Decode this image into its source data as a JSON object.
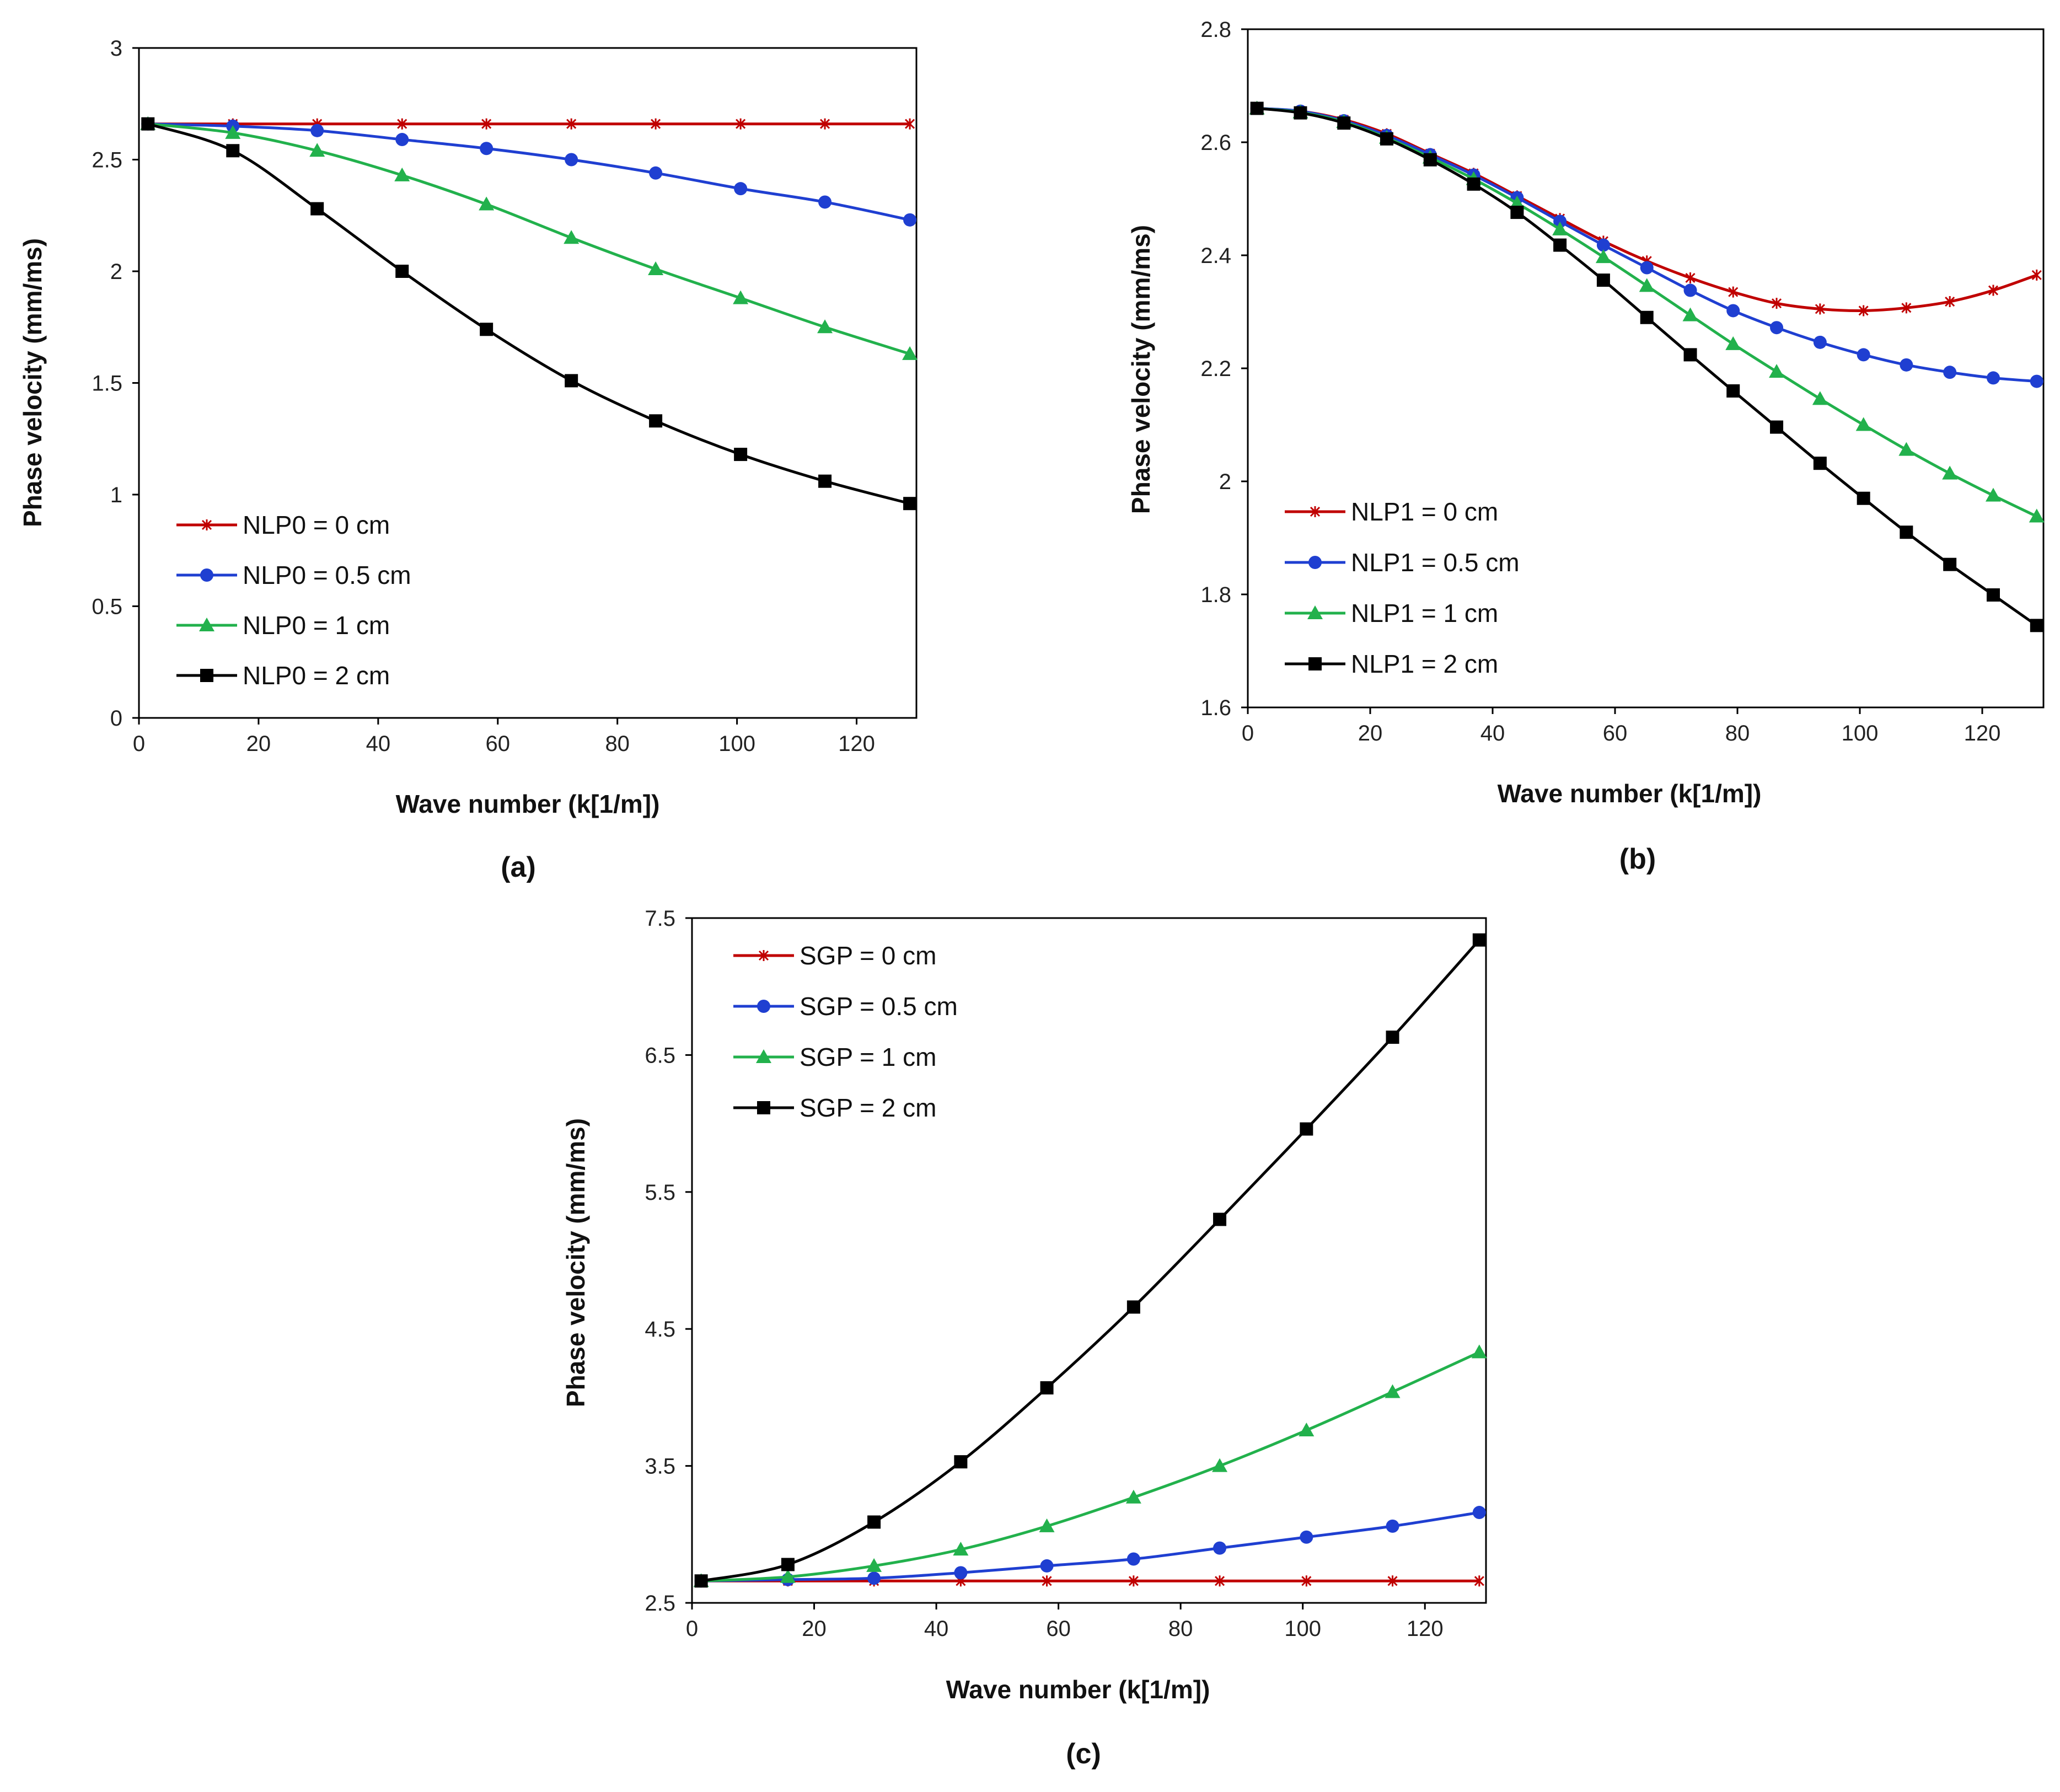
{
  "chart_data": [
    {
      "type": "line",
      "panel_label": "(a)",
      "xlabel": "Wave number (k[1/m])",
      "ylabel": "Phase velocity (mm/ms)",
      "xlim": [
        0,
        130
      ],
      "ylim": [
        0,
        3
      ],
      "xticks": [
        0,
        20,
        40,
        60,
        80,
        100,
        120
      ],
      "yticks": [
        0,
        0.5,
        1,
        1.5,
        2,
        2.5,
        3
      ],
      "ytick_labels": [
        "0",
        "0.5",
        "1",
        "1.5",
        "2",
        "2.5",
        "3"
      ],
      "legend_position": "lower-left",
      "series": [
        {
          "name": "NLP0 = 0 cm",
          "color": "#c00000",
          "marker": "star",
          "x": [
            1.5,
            15.7,
            29.8,
            44,
            58.1,
            72.3,
            86.4,
            100.6,
            114.7,
            128.9
          ],
          "values": [
            2.66,
            2.66,
            2.66,
            2.66,
            2.66,
            2.66,
            2.66,
            2.66,
            2.66,
            2.66
          ]
        },
        {
          "name": "NLP0 = 0.5 cm",
          "color": "#1f3fd1",
          "marker": "circle",
          "x": [
            1.5,
            15.7,
            29.8,
            44,
            58.1,
            72.3,
            86.4,
            100.6,
            114.7,
            128.9
          ],
          "values": [
            2.66,
            2.65,
            2.63,
            2.59,
            2.55,
            2.5,
            2.44,
            2.37,
            2.31,
            2.23
          ]
        },
        {
          "name": "NLP0 = 1 cm",
          "color": "#22b14c",
          "marker": "triangle",
          "x": [
            1.5,
            15.7,
            29.8,
            44,
            58.1,
            72.3,
            86.4,
            100.6,
            114.7,
            128.9
          ],
          "values": [
            2.66,
            2.62,
            2.54,
            2.43,
            2.3,
            2.15,
            2.01,
            1.88,
            1.75,
            1.63
          ]
        },
        {
          "name": "NLP0 = 2 cm",
          "color": "#000000",
          "marker": "square",
          "x": [
            1.5,
            15.7,
            29.8,
            44,
            58.1,
            72.3,
            86.4,
            100.6,
            114.7,
            128.9
          ],
          "values": [
            2.66,
            2.54,
            2.28,
            2.0,
            1.74,
            1.51,
            1.33,
            1.18,
            1.06,
            0.96
          ]
        }
      ]
    },
    {
      "type": "line",
      "panel_label": "(b)",
      "xlabel": "Wave number (k[1/m])",
      "ylabel": "Phase velocity (mm/ms)",
      "xlim": [
        0,
        130
      ],
      "ylim": [
        1.6,
        2.8
      ],
      "xticks": [
        0,
        20,
        40,
        60,
        80,
        100,
        120
      ],
      "yticks": [
        1.6,
        1.8,
        2,
        2.2,
        2.4,
        2.6,
        2.8
      ],
      "ytick_labels": [
        "1.6",
        "1.8",
        "2",
        "2.2",
        "2.4",
        "2.6",
        "2.8"
      ],
      "legend_position": "lower-left",
      "series": [
        {
          "name": "NLP1 = 0 cm",
          "color": "#c00000",
          "marker": "star",
          "x": [
            1.5,
            8.6,
            15.7,
            22.7,
            29.8,
            36.9,
            44,
            51,
            58.1,
            65.2,
            72.3,
            79.3,
            86.4,
            93.5,
            100.6,
            107.6,
            114.7,
            121.8,
            128.9
          ],
          "values": [
            2.66,
            2.655,
            2.64,
            2.615,
            2.58,
            2.545,
            2.505,
            2.465,
            2.425,
            2.39,
            2.36,
            2.335,
            2.315,
            2.305,
            2.302,
            2.307,
            2.318,
            2.338,
            2.365
          ]
        },
        {
          "name": "NLP1 = 0.5 cm",
          "color": "#1f3fd1",
          "marker": "circle",
          "x": [
            1.5,
            8.6,
            15.7,
            22.7,
            29.8,
            36.9,
            44,
            51,
            58.1,
            65.2,
            72.3,
            79.3,
            86.4,
            93.5,
            100.6,
            107.6,
            114.7,
            121.8,
            128.9
          ],
          "values": [
            2.66,
            2.655,
            2.638,
            2.612,
            2.578,
            2.542,
            2.502,
            2.46,
            2.418,
            2.378,
            2.338,
            2.302,
            2.272,
            2.246,
            2.224,
            2.206,
            2.193,
            2.183,
            2.177
          ]
        },
        {
          "name": "NLP1 = 1 cm",
          "color": "#22b14c",
          "marker": "triangle",
          "x": [
            1.5,
            8.6,
            15.7,
            22.7,
            29.8,
            36.9,
            44,
            51,
            58.1,
            65.2,
            72.3,
            79.3,
            86.4,
            93.5,
            100.6,
            107.6,
            114.7,
            121.8,
            128.9
          ],
          "values": [
            2.66,
            2.653,
            2.636,
            2.608,
            2.573,
            2.535,
            2.492,
            2.446,
            2.397,
            2.346,
            2.294,
            2.243,
            2.194,
            2.146,
            2.1,
            2.056,
            2.014,
            1.975,
            1.938
          ]
        },
        {
          "name": "NLP1 = 2 cm",
          "color": "#000000",
          "marker": "square",
          "x": [
            1.5,
            8.6,
            15.7,
            22.7,
            29.8,
            36.9,
            44,
            51,
            58.1,
            65.2,
            72.3,
            79.3,
            86.4,
            93.5,
            100.6,
            107.6,
            114.7,
            121.8,
            128.9
          ],
          "values": [
            2.66,
            2.652,
            2.634,
            2.606,
            2.569,
            2.526,
            2.476,
            2.418,
            2.356,
            2.29,
            2.224,
            2.16,
            2.096,
            2.032,
            1.97,
            1.91,
            1.853,
            1.799,
            1.745
          ]
        }
      ]
    },
    {
      "type": "line",
      "panel_label": "(c)",
      "xlabel": "Wave number (k[1/m])",
      "ylabel": "Phase velocity (mm/ms)",
      "xlim": [
        0,
        130
      ],
      "ylim": [
        2.5,
        7.5
      ],
      "xticks": [
        0,
        20,
        40,
        60,
        80,
        100,
        120
      ],
      "yticks": [
        2.5,
        3.5,
        4.5,
        5.5,
        6.5,
        7.5
      ],
      "ytick_labels": [
        "2.5",
        "3.5",
        "4.5",
        "5.5",
        "6.5",
        "7.5"
      ],
      "legend_position": "upper-left",
      "series": [
        {
          "name": "SGP = 0 cm",
          "color": "#c00000",
          "marker": "star",
          "x": [
            1.5,
            15.7,
            29.8,
            44,
            58.1,
            72.3,
            86.4,
            100.6,
            114.7,
            128.9
          ],
          "values": [
            2.66,
            2.66,
            2.66,
            2.66,
            2.66,
            2.66,
            2.66,
            2.66,
            2.66,
            2.66
          ]
        },
        {
          "name": "SGP = 0.5 cm",
          "color": "#1f3fd1",
          "marker": "circle",
          "x": [
            1.5,
            15.7,
            29.8,
            44,
            58.1,
            72.3,
            86.4,
            100.6,
            114.7,
            128.9
          ],
          "values": [
            2.66,
            2.67,
            2.68,
            2.72,
            2.77,
            2.82,
            2.9,
            2.98,
            3.06,
            3.16
          ]
        },
        {
          "name": "SGP = 1 cm",
          "color": "#22b14c",
          "marker": "triangle",
          "x": [
            1.5,
            15.7,
            29.8,
            44,
            58.1,
            72.3,
            86.4,
            100.6,
            114.7,
            128.9
          ],
          "values": [
            2.66,
            2.69,
            2.77,
            2.89,
            3.06,
            3.27,
            3.5,
            3.76,
            4.04,
            4.33
          ]
        },
        {
          "name": "SGP = 2 cm",
          "color": "#000000",
          "marker": "square",
          "x": [
            1.5,
            15.7,
            29.8,
            44,
            58.1,
            72.3,
            86.4,
            100.6,
            114.7,
            128.9
          ],
          "values": [
            2.66,
            2.78,
            3.09,
            3.53,
            4.07,
            4.66,
            5.3,
            5.96,
            6.63,
            7.34
          ]
        }
      ]
    }
  ]
}
